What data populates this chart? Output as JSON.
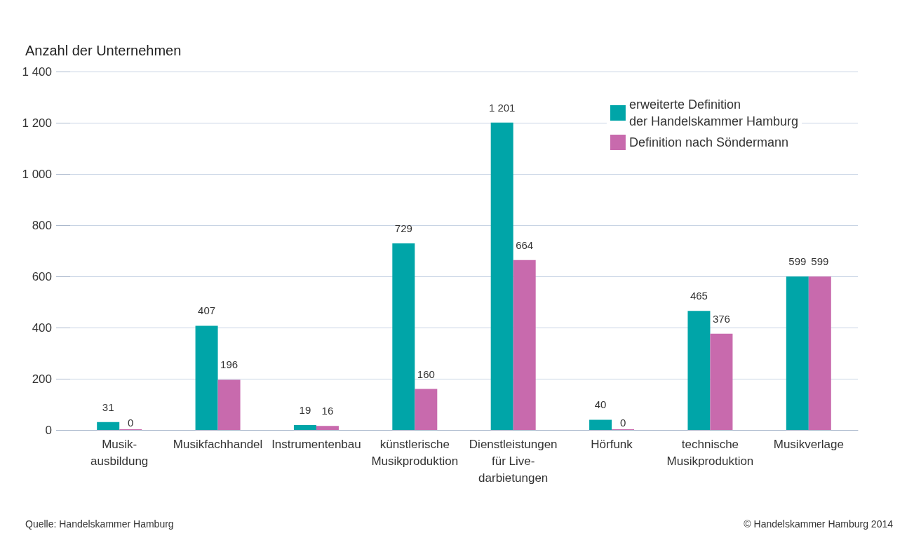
{
  "chart_data": {
    "type": "bar",
    "ylabel": "Anzahl der Unternehmen",
    "categories": [
      "Musik-\nausbildung",
      "Musikfachhandel",
      "Instrumentenbau",
      "künstlerische\nMusikproduktion",
      "Dienstleistungen\nfür Live-\ndarbietungen",
      "Hörfunk",
      "technische\nMusikproduktion",
      "Musikverlage"
    ],
    "series": [
      {
        "name": "erweiterte Definition\nder Handelskammer Hamburg",
        "color": "#00a5a8",
        "values": [
          31,
          407,
          19,
          729,
          1201,
          40,
          465,
          599
        ],
        "value_labels": [
          "31",
          "407",
          "19",
          "729",
          "1 201",
          "40",
          "465",
          "599"
        ]
      },
      {
        "name": "Definition nach Söndermann",
        "color": "#c86aad",
        "values": [
          0,
          196,
          16,
          160,
          664,
          0,
          376,
          599
        ],
        "value_labels": [
          "0",
          "196",
          "16",
          "160",
          "664",
          "0",
          "376",
          "599"
        ]
      }
    ],
    "ylim": [
      0,
      1400
    ],
    "yticks": [
      0,
      200,
      400,
      600,
      800,
      {
        "value": 1000,
        "label": "1 000"
      },
      {
        "value": 1200,
        "label": "1 200"
      },
      {
        "value": 1400,
        "label": "1 400"
      }
    ],
    "grid": "y",
    "legend": "top right",
    "annotations": [
      "Quelle: Handelskammer Hamburg",
      "© Handelskammer Hamburg 2014"
    ]
  }
}
